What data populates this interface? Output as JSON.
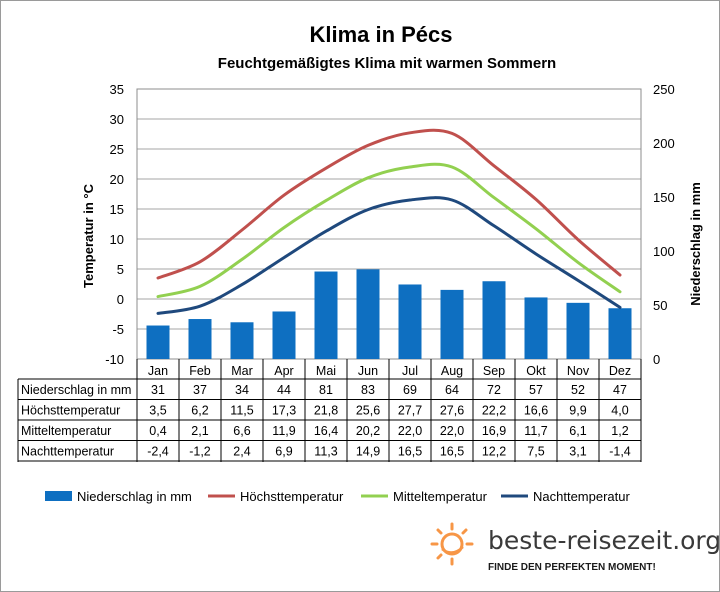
{
  "title": "Klima in Pécs",
  "subtitle": "Feuchtgemäßigtes  Klima mit warmen Sommern",
  "brand": {
    "name": "beste-reisezeit.org",
    "tagline": "FINDE DEN PERFEKTEN MOMENT!"
  },
  "colors": {
    "precip": "#0e6fc1",
    "high": "#c0504d",
    "mean": "#92d050",
    "night": "#1f497d",
    "grid": "#a6a6a6",
    "sun": "#f79646"
  },
  "chart_data": {
    "type": "bar+line",
    "categories": [
      "Jan",
      "Feb",
      "Mar",
      "Apr",
      "Mai",
      "Jun",
      "Jul",
      "Aug",
      "Sep",
      "Okt",
      "Nov",
      "Dez"
    ],
    "ylabel_left": "Temperatur in °C",
    "ylabel_right": "Niederschlag in mm",
    "ylim_left": [
      -10,
      35
    ],
    "ylim_right": [
      0,
      250
    ],
    "yticks_left": [
      "35",
      "30",
      "25",
      "20",
      "15",
      "10",
      "5",
      "0",
      "-5",
      "-10"
    ],
    "yticks_right": [
      "250",
      "200",
      "150",
      "100",
      "50",
      "0"
    ],
    "grid": true,
    "legend_position": "bottom",
    "series": [
      {
        "name": "Niederschlag in mm",
        "type": "bar",
        "axis": "right",
        "values": [
          31,
          37,
          34,
          44,
          81,
          83,
          69,
          64,
          72,
          57,
          52,
          47
        ],
        "labels": [
          "31",
          "37",
          "34",
          "44",
          "81",
          "83",
          "69",
          "64",
          "72",
          "57",
          "52",
          "47"
        ]
      },
      {
        "name": "Höchsttemperatur",
        "type": "line",
        "axis": "left",
        "values": [
          3.5,
          6.2,
          11.5,
          17.3,
          21.8,
          25.6,
          27.7,
          27.6,
          22.2,
          16.6,
          9.9,
          4.0
        ],
        "labels": [
          "3,5",
          "6,2",
          "11,5",
          "17,3",
          "21,8",
          "25,6",
          "27,7",
          "27,6",
          "22,2",
          "16,6",
          "9,9",
          "4,0"
        ]
      },
      {
        "name": "Mitteltemperatur",
        "type": "line",
        "axis": "left",
        "values": [
          0.4,
          2.1,
          6.6,
          11.9,
          16.4,
          20.2,
          22.0,
          22.0,
          16.9,
          11.7,
          6.1,
          1.2
        ],
        "labels": [
          "0,4",
          "2,1",
          "6,6",
          "11,9",
          "16,4",
          "20,2",
          "22,0",
          "22,0",
          "16,9",
          "11,7",
          "6,1",
          "1,2"
        ]
      },
      {
        "name": "Nachttemperatur",
        "type": "line",
        "axis": "left",
        "values": [
          -2.4,
          -1.2,
          2.4,
          6.9,
          11.3,
          14.9,
          16.5,
          16.5,
          12.2,
          7.5,
          3.1,
          -1.4
        ],
        "labels": [
          "-2,4",
          "-1,2",
          "2,4",
          "6,9",
          "11,3",
          "14,9",
          "16,5",
          "16,5",
          "12,2",
          "7,5",
          "3,1",
          "-1,4"
        ]
      }
    ]
  }
}
